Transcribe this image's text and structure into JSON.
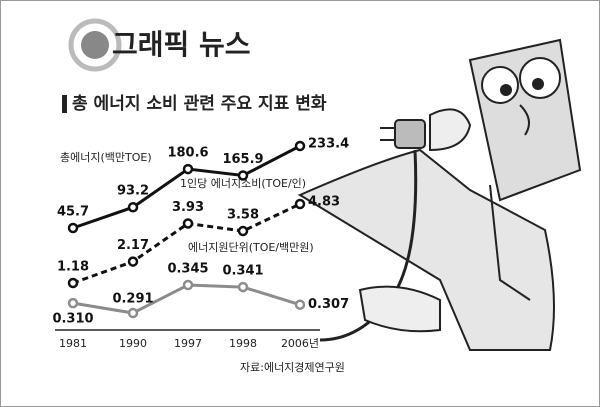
{
  "header": {
    "title": "그래픽 뉴스"
  },
  "chart_data": {
    "type": "line",
    "title": "총 에너지 소비 관련 주요 지표 변화",
    "categories": [
      "1981",
      "1990",
      "1997",
      "1998",
      "2006년"
    ],
    "series": [
      {
        "name": "총에너지(백만TOE)",
        "color": "#111111",
        "dashed": false,
        "values": [
          45.7,
          93.2,
          180.6,
          165.9,
          233.4
        ]
      },
      {
        "name": "1인당 에너지소비(TOE/인)",
        "color": "#111111",
        "dashed": true,
        "values": [
          1.18,
          2.17,
          3.93,
          3.58,
          4.83
        ]
      },
      {
        "name": "에너지원단위(TOE/백만원)",
        "color": "#8c8c8c",
        "dashed": false,
        "values": [
          0.31,
          0.291,
          0.345,
          0.341,
          0.307
        ],
        "value_labels": [
          "0.310",
          "0.291",
          "0.345",
          "0.341",
          "0.307"
        ]
      }
    ],
    "source": "자료:에너지경제연구원"
  }
}
